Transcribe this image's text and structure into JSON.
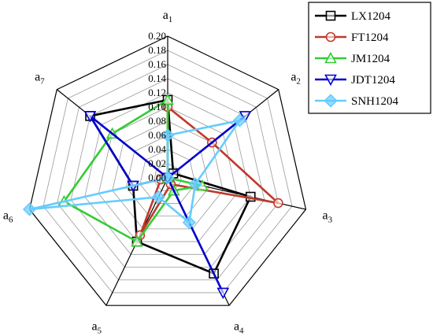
{
  "chart_data": {
    "type": "radar",
    "axes": [
      {
        "base": "a",
        "sub": "1"
      },
      {
        "base": "a",
        "sub": "2"
      },
      {
        "base": "a",
        "sub": "3"
      },
      {
        "base": "a",
        "sub": "4"
      },
      {
        "base": "a",
        "sub": "5"
      },
      {
        "base": "a",
        "sub": "6"
      },
      {
        "base": "a",
        "sub": "7"
      }
    ],
    "rlim": [
      0,
      0.2
    ],
    "ticks": [
      "0.00",
      "0.02",
      "0.04",
      "0.06",
      "0.08",
      "0.10",
      "0.12",
      "0.14",
      "0.16",
      "0.18",
      "0.20"
    ],
    "grid": true,
    "legend_position": "top-right",
    "series": [
      {
        "name": "LX1204",
        "color": "#000000",
        "marker": "square",
        "values": [
          0.11,
          0.01,
          0.12,
          0.15,
          0.1,
          0.05,
          0.14
        ]
      },
      {
        "name": "FT1204",
        "color": "#c0392b",
        "marker": "circle",
        "values": [
          0.1,
          0.08,
          0.16,
          0.01,
          0.09,
          0.01,
          0.0
        ]
      },
      {
        "name": "JM1204",
        "color": "#33cc33",
        "marker": "triangle-up",
        "values": [
          0.11,
          0.0,
          0.05,
          0.02,
          0.1,
          0.15,
          0.1
        ]
      },
      {
        "name": "JDT1204",
        "color": "#0000cc",
        "marker": "triangle-down",
        "values": [
          0.0,
          0.14,
          0.0,
          0.18,
          0.0,
          0.05,
          0.14
        ]
      },
      {
        "name": "SNH1204",
        "color": "#66ccff",
        "marker": "diamond",
        "values": [
          0.06,
          0.13,
          0.04,
          0.07,
          0.03,
          0.2,
          0.0
        ]
      }
    ]
  }
}
